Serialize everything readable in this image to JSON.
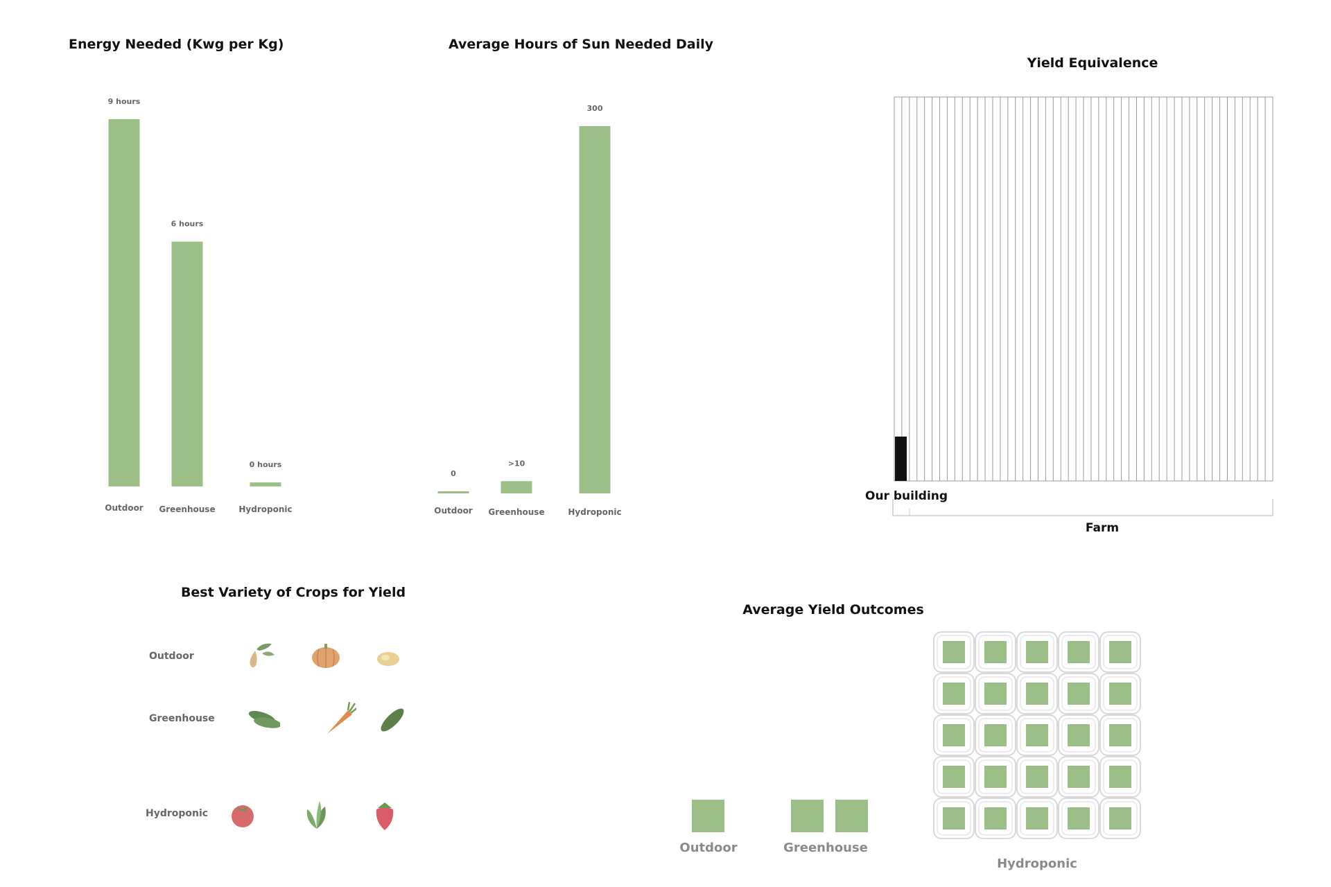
{
  "colors": {
    "bar": "#9bbf87",
    "label": "#666666",
    "grid": "#999999",
    "building": "#111111"
  },
  "chart_data": [
    {
      "type": "bar",
      "title": "Energy Needed (Kwg per Kg)",
      "categories": [
        "Outdoor",
        "Greenhouse",
        "Hydroponic"
      ],
      "values": [
        9,
        6,
        0.1
      ],
      "value_labels": [
        "9 hours",
        "6 hours",
        "0 hours"
      ],
      "ylim": [
        0,
        9
      ],
      "grid": false
    },
    {
      "type": "bar",
      "title": "Average Hours of Sun Needed Daily",
      "categories": [
        "Outdoor",
        "Greenhouse",
        "Hydroponic"
      ],
      "values": [
        0.3,
        10,
        300
      ],
      "value_labels": [
        "0",
        ">10",
        "300"
      ],
      "ylim": [
        0,
        300
      ],
      "grid": false
    },
    {
      "type": "bar",
      "title": "Yield Equivalence",
      "categories": [
        "Our building",
        "Farm"
      ],
      "values": [
        1,
        50
      ],
      "labels": {
        "building": "Our building",
        "farm": "Farm"
      }
    },
    {
      "type": "table",
      "title": "Average Yield Outcomes",
      "categories": [
        "Outdoor",
        "Greenhouse",
        "Hydroponic"
      ],
      "values": [
        1,
        2,
        25
      ]
    }
  ],
  "crops": {
    "title": "Best Variety of Crops for Yield",
    "rows": [
      {
        "label": "Outdoor",
        "icons": [
          "squash-icon",
          "pumpkin-icon",
          "potato-icon"
        ]
      },
      {
        "label": "Greenhouse",
        "icons": [
          "cucumbers-icon",
          "carrot-icon",
          "zucchini-icon"
        ]
      },
      {
        "label": "Hydroponic",
        "icons": [
          "tomato-icon",
          "spinach-icon",
          "strawberry-icon"
        ]
      }
    ]
  }
}
